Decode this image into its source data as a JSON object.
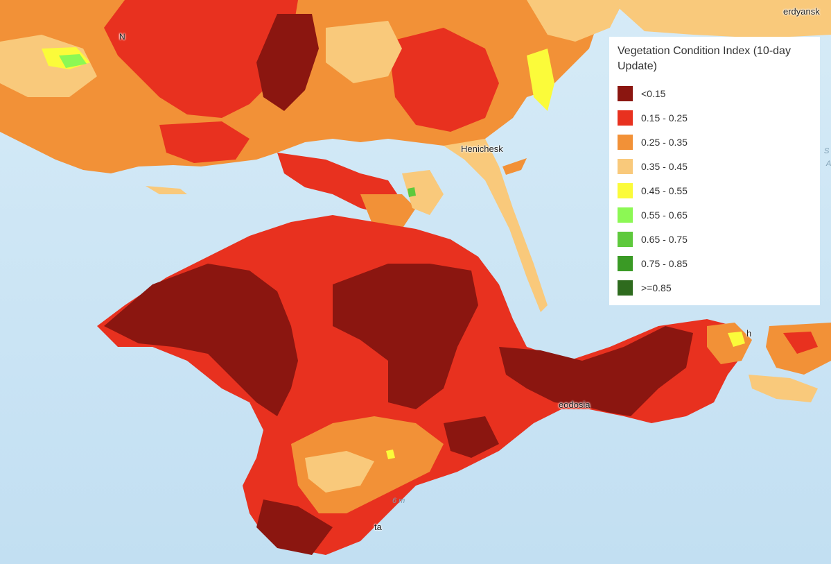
{
  "legend": {
    "title": "Vegetation Condition Index (10-day Update)",
    "items": [
      {
        "label": "<0.15",
        "color": "#8b1610"
      },
      {
        "label": "0.15 - 0.25",
        "color": "#e8311f"
      },
      {
        "label": "0.25 - 0.35",
        "color": "#f29137"
      },
      {
        "label": "0.35 - 0.45",
        "color": "#f9c97b"
      },
      {
        "label": "0.45 - 0.55",
        "color": "#fbfb3a"
      },
      {
        "label": "0.55 - 0.65",
        "color": "#8cf854"
      },
      {
        "label": "0.65 - 0.75",
        "color": "#5ec93c"
      },
      {
        "label": "0.75 - 0.85",
        "color": "#3a9a25"
      },
      {
        "label": ">=0.85",
        "color": "#2e6b1e"
      }
    ]
  },
  "places": {
    "berdyansk": "erdyansk",
    "henichesk": "Henichesk",
    "feodosia": "eodosia",
    "kerch": "h",
    "yalta": "ta",
    "depth": "6 m",
    "north_left": "N",
    "sea_s": "S",
    "sea_a": "A"
  },
  "colors": {
    "sea": "#cfe6f5",
    "deep_sea": "#bcd9ee"
  }
}
